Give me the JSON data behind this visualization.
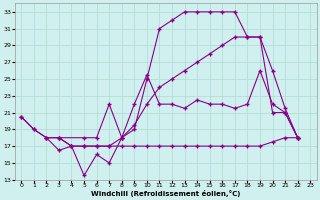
{
  "xlabel": "Windchill (Refroidissement éolien,°C)",
  "background_color": "#cff0ee",
  "grid_color": "#b0d8d0",
  "line_color": "#880088",
  "xlim": [
    -0.5,
    23.5
  ],
  "ylim": [
    13,
    34
  ],
  "yticks": [
    13,
    15,
    17,
    19,
    21,
    23,
    25,
    27,
    29,
    31,
    33
  ],
  "xticks": [
    0,
    1,
    2,
    3,
    4,
    5,
    6,
    7,
    8,
    9,
    10,
    11,
    12,
    13,
    14,
    15,
    16,
    17,
    18,
    19,
    20,
    21,
    22,
    23
  ],
  "line1_x": [
    0,
    1,
    2,
    3,
    5,
    6,
    7,
    8,
    9,
    10,
    11,
    12,
    13,
    14,
    15,
    16,
    17,
    18,
    19,
    20,
    21,
    22
  ],
  "line1_y": [
    20.5,
    19,
    18,
    18,
    18,
    18,
    22,
    18,
    19,
    25,
    31,
    32,
    33,
    33,
    33,
    33,
    33,
    30,
    30,
    21,
    21,
    18
  ],
  "line2_x": [
    0,
    1,
    2,
    3,
    4,
    5,
    6,
    7,
    8,
    9,
    10,
    11,
    12,
    13,
    14,
    15,
    16,
    17,
    18,
    19,
    20,
    21,
    22
  ],
  "line2_y": [
    20.5,
    19,
    18,
    16.5,
    17,
    13.5,
    16,
    15,
    18,
    22,
    25.5,
    22,
    22,
    21.5,
    22.5,
    22,
    22,
    21.5,
    22,
    26,
    22,
    21,
    18
  ],
  "line3_x": [
    2,
    3,
    4,
    5,
    6,
    7,
    8,
    9,
    10,
    11,
    12,
    13,
    14,
    15,
    16,
    17,
    18,
    19,
    20,
    21,
    22
  ],
  "line3_y": [
    18,
    18,
    17,
    17,
    17,
    17,
    18,
    19.5,
    22,
    24,
    25,
    26,
    27,
    28,
    29,
    30,
    30,
    30,
    26,
    21.5,
    18
  ],
  "line4_x": [
    3,
    4,
    5,
    6,
    7,
    8,
    9,
    10,
    11,
    12,
    13,
    14,
    15,
    16,
    17,
    18,
    19,
    20,
    21,
    22
  ],
  "line4_y": [
    18,
    17,
    17,
    17,
    17,
    17,
    17,
    17,
    17,
    17,
    17,
    17,
    17,
    17,
    17,
    17,
    17,
    17.5,
    18,
    18
  ]
}
